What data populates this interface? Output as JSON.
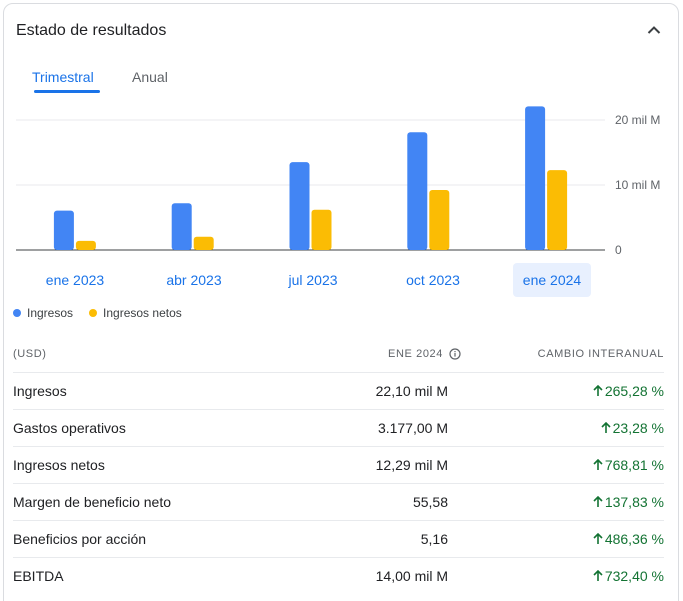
{
  "card": {
    "title": "Estado de resultados"
  },
  "tabs": [
    {
      "label": "Trimestral",
      "active": true
    },
    {
      "label": "Anual",
      "active": false
    }
  ],
  "chart_data": {
    "type": "bar",
    "categories": [
      "ene 2023",
      "abr 2023",
      "jul 2023",
      "oct 2023",
      "ene 2024"
    ],
    "series": [
      {
        "name": "Ingresos",
        "color": "#4285f4",
        "values": [
          6.05,
          7.19,
          13.51,
          18.12,
          22.1
        ]
      },
      {
        "name": "Ingresos netos",
        "color": "#fbbc04",
        "values": [
          1.41,
          2.04,
          6.19,
          9.24,
          12.29
        ]
      }
    ],
    "y_ticks": [
      "0",
      "10 mil M",
      "20 mil M"
    ],
    "y_tick_values": [
      0,
      10,
      20
    ],
    "ylim": [
      0,
      22.1
    ],
    "selected_category": "ene 2024",
    "grid": true,
    "legend": "bottom-left"
  },
  "table": {
    "header": {
      "label": "(USD)",
      "value": "ENE 2024",
      "change": "CAMBIO INTERANUAL"
    },
    "rows": [
      {
        "label": "Ingresos",
        "value": "22,10 mil M",
        "change": "265,28 %"
      },
      {
        "label": "Gastos operativos",
        "value": "3.177,00 M",
        "change": "23,28 %"
      },
      {
        "label": "Ingresos netos",
        "value": "12,29 mil M",
        "change": "768,81 %"
      },
      {
        "label": "Margen de beneficio neto",
        "value": "55,58",
        "change": "137,83 %"
      },
      {
        "label": "Beneficios por acción",
        "value": "5,16",
        "change": "486,36 %"
      },
      {
        "label": "EBITDA",
        "value": "14,00 mil M",
        "change": "732,40 %"
      }
    ]
  },
  "colors": {
    "accent": "#1a73e8",
    "positive": "#137333",
    "selected_bg": "#e8f0fe"
  },
  "icons": {
    "collapse": "chevron-up-icon",
    "info": "info-icon",
    "change_arrow": "arrow-up-icon"
  }
}
